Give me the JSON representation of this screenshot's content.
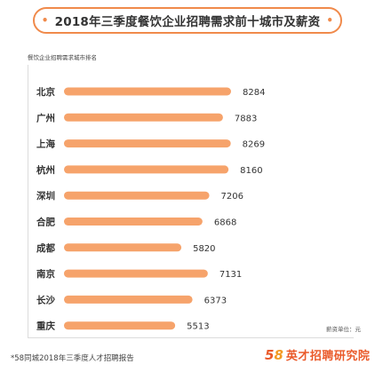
{
  "title": "2018年三季度餐饮企业招聘需求前十城市及薪资",
  "subtitle": "餐饮企业招聘需求城市排名",
  "unit_note": "薪资单位：元",
  "source": "*58同城2018年三季度人才招聘报告",
  "brand": {
    "digit1": "5",
    "digit2": "8",
    "text": "英才招聘研究院"
  },
  "colors": {
    "bar": "#f6a36b",
    "accent": "#f08a4b",
    "brand_red": "#ea5a2a",
    "brand_orange": "#f39a22"
  },
  "chart_data": {
    "type": "bar",
    "orientation": "horizontal",
    "title": "2018年三季度餐饮企业招聘需求前十城市及薪资",
    "categories": [
      "北京",
      "广州",
      "上海",
      "杭州",
      "深圳",
      "合肥",
      "成都",
      "南京",
      "长沙",
      "重庆"
    ],
    "values": [
      8284,
      7883,
      8269,
      8160,
      7206,
      6868,
      5820,
      7131,
      6373,
      5513
    ],
    "unit": "元",
    "grid": false,
    "legend": "none"
  }
}
